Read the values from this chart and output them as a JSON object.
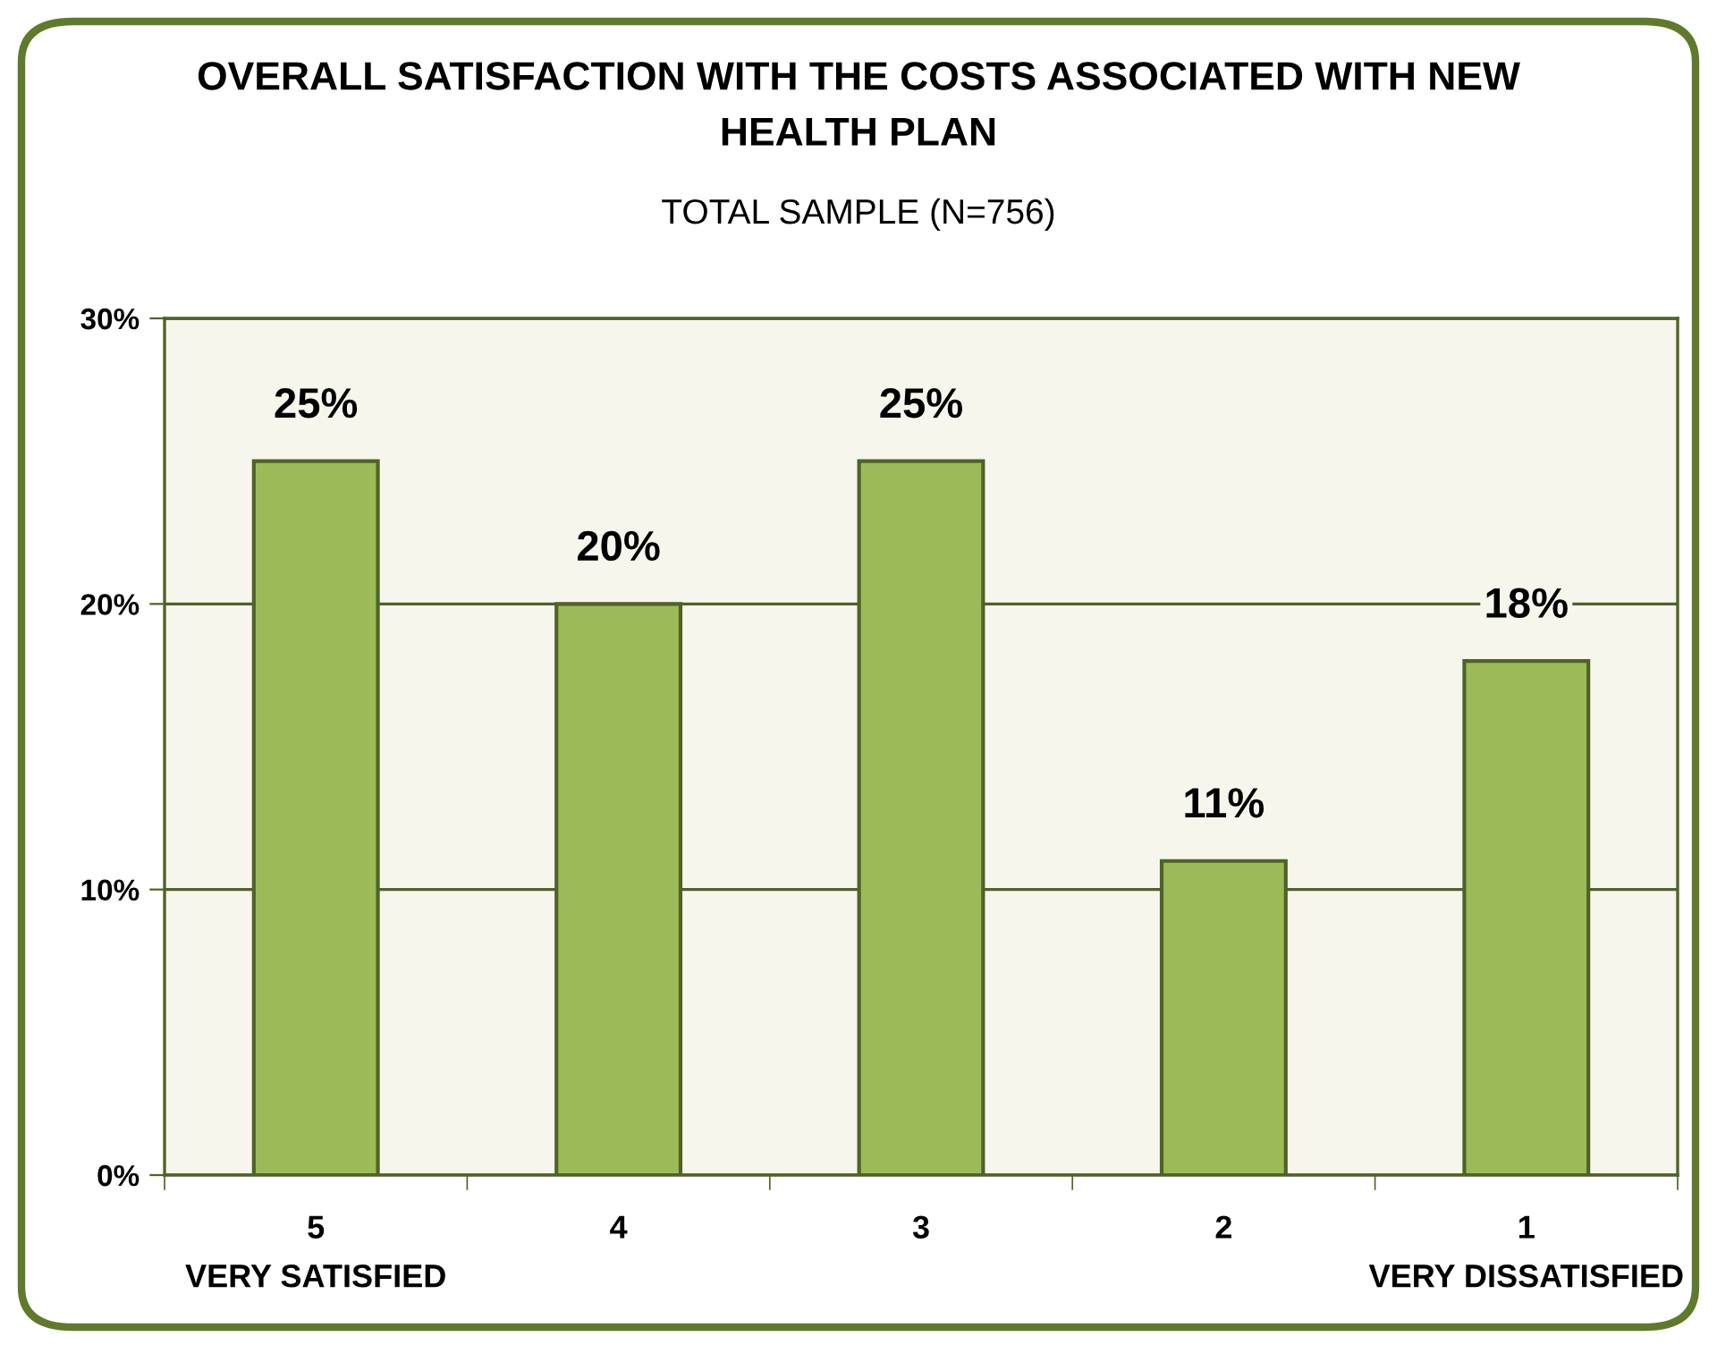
{
  "chart_data": {
    "type": "bar",
    "title": "OVERALL SATISFACTION WITH THE COSTS ASSOCIATED WITH NEW\nHEALTH PLAN",
    "subtitle": "TOTAL SAMPLE (N=756)",
    "categories": [
      "5\nVERY SATISFIED",
      "4",
      "3",
      "2",
      "1\nVERY DISSATISFIED"
    ],
    "values": [
      25,
      20,
      25,
      11,
      18
    ],
    "value_labels": [
      "25%",
      "20%",
      "25%",
      "11%",
      "18%"
    ],
    "color": "#9bbb59",
    "ylim": [
      0,
      30
    ],
    "yticks": [
      {
        "value": 0,
        "label": "0%"
      },
      {
        "value": 10,
        "label": "10%"
      },
      {
        "value": 20,
        "label": "20%"
      },
      {
        "value": 30,
        "label": "30%"
      }
    ],
    "grid": "y"
  }
}
